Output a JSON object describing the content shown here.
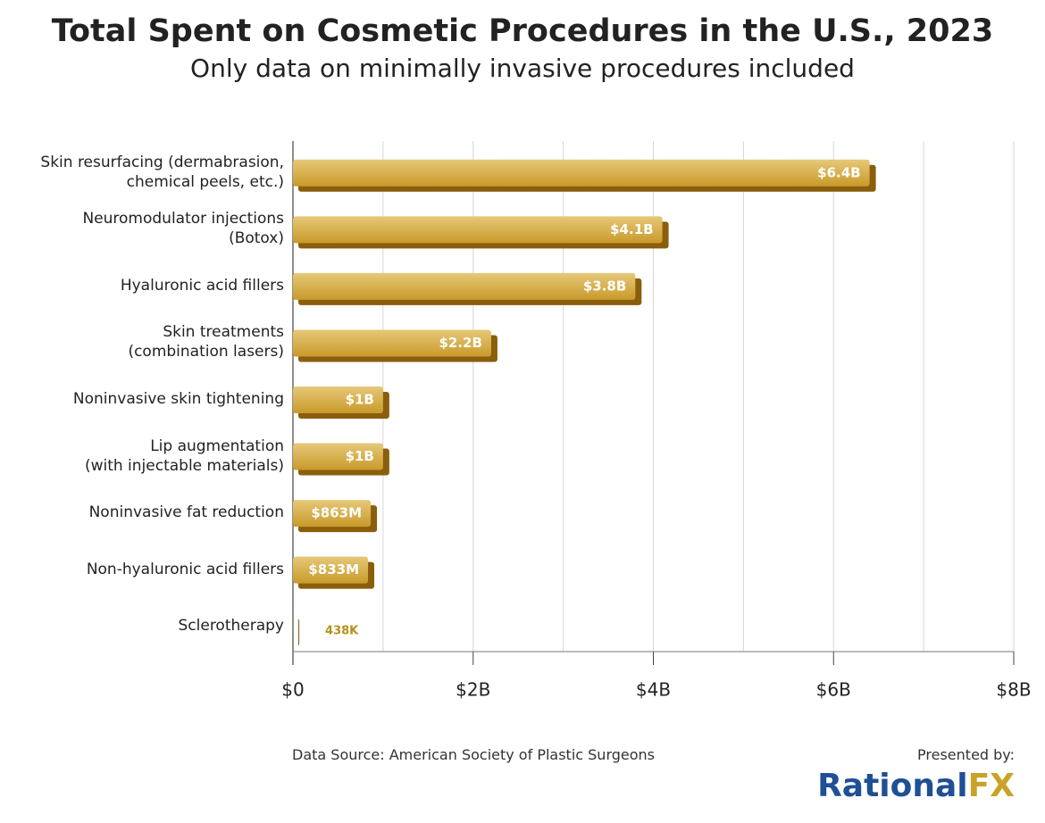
{
  "chart_data": {
    "type": "bar",
    "orientation": "horizontal",
    "title": "Total Spent on Cosmetic Procedures in the U.S., 2023",
    "subtitle": "Only data on minimally invasive procedures included",
    "categories": [
      "Skin resurfacing (dermabrasion,\nchemical peels, etc.)",
      "Neuromodulator injections\n(Botox)",
      "Hyaluronic acid fillers",
      "Skin treatments\n(combination lasers)",
      "Noninvasive skin tightening",
      "Lip augmentation\n(with injectable materials)",
      "Noninvasive fat reduction",
      "Non-hyaluronic acid fillers",
      "Sclerotherapy"
    ],
    "values": [
      6.4,
      4.1,
      3.8,
      2.2,
      1,
      1,
      0.863,
      0.833,
      0.000438
    ],
    "value_labels": [
      "$6.4B",
      "$4.1B",
      "$3.8B",
      "$2.2B",
      "$1B",
      "$1B",
      "$863M",
      "$833M",
      "438K"
    ],
    "color": "#d4a93f",
    "xlim": [
      0,
      8
    ],
    "xticks": [
      {
        "value": 0,
        "label": "$0"
      },
      {
        "value": 2,
        "label": "$2B"
      },
      {
        "value": 4,
        "label": "$4B"
      },
      {
        "value": 6,
        "label": "$6B"
      },
      {
        "value": 8,
        "label": "$8B"
      }
    ],
    "minor_xticks": [
      1,
      3,
      5,
      7
    ],
    "grid": true,
    "source": "Data Source: American Society of Plastic Surgeons",
    "presented_by": "Presented by:",
    "brand": [
      "Rational",
      "FX"
    ]
  }
}
